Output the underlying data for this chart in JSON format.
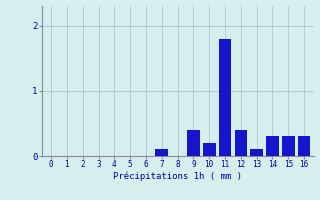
{
  "hours": [
    0,
    1,
    2,
    3,
    4,
    5,
    6,
    7,
    8,
    9,
    10,
    11,
    12,
    13,
    14,
    15,
    16
  ],
  "values": [
    0,
    0,
    0,
    0,
    0,
    0,
    0,
    0.1,
    0,
    0.4,
    0.2,
    1.8,
    0.4,
    0.1,
    0.3,
    0.3,
    0.3
  ],
  "bar_color": "#1515cc",
  "background_color": "#d6eeee",
  "grid_color": "#aabbcc",
  "xlabel": "Précipitations 1h ( mm )",
  "xlabel_color": "#0000aa",
  "tick_color": "#0000aa",
  "ylim": [
    0,
    2.3
  ],
  "yticks": [
    0,
    1,
    2
  ],
  "xlim": [
    -0.6,
    16.6
  ],
  "figsize": [
    3.2,
    2.0
  ],
  "dpi": 100
}
